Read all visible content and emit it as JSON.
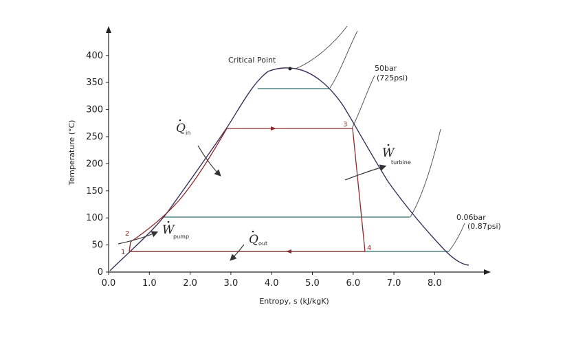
{
  "chart_data": {
    "type": "line",
    "xlabel": "Entropy, s (kJ/kgK)",
    "ylabel": "Temperature (°C)",
    "xlim": [
      0,
      9.0
    ],
    "ylim": [
      0,
      440
    ],
    "xticks": [
      "0.0",
      "1.0",
      "2.0",
      "3.0",
      "4.0",
      "5.0",
      "6.0",
      "7.0",
      "8.0"
    ],
    "yticks": [
      "0",
      "50",
      "100",
      "150",
      "200",
      "250",
      "300",
      "350",
      "400"
    ],
    "grid": false,
    "colors": {
      "axis": "#222222",
      "dome": "#3a2f5c",
      "cycle": "#8b2a2a",
      "isobar": "#2e6b6b",
      "isobar_sh": "#555555",
      "arrow": "#333333"
    },
    "series": [
      {
        "role": "saturation-dome",
        "x": [
          0.0,
          0.5,
          1.2,
          2.0,
          2.5,
          2.9,
          3.3,
          3.7,
          4.0,
          4.4,
          4.8,
          5.2,
          5.6,
          6.0,
          6.5,
          7.0,
          7.5,
          8.0,
          8.5
        ],
        "y": [
          0,
          40,
          95,
          180,
          230,
          265,
          325,
          360,
          372,
          374,
          365,
          340,
          305,
          262,
          200,
          140,
          90,
          52,
          18
        ]
      },
      {
        "role": "cycle-boiler",
        "x": [
          2.9,
          6.0
        ],
        "y": [
          265,
          265
        ]
      },
      {
        "role": "cycle-turbine",
        "x": [
          6.0,
          6.27
        ],
        "y": [
          265,
          37
        ]
      },
      {
        "role": "cycle-condenser",
        "x": [
          6.27,
          0.5
        ],
        "y": [
          37,
          37
        ]
      },
      {
        "role": "cycle-pump",
        "x": [
          0.5,
          0.55
        ],
        "y": [
          37,
          55
        ]
      },
      {
        "role": "isobar-0.06bar-wet",
        "x": [
          1.3,
          8.3
        ],
        "y": [
          37,
          37
        ]
      },
      {
        "role": "isobar-50bar-wet",
        "x": [
          3.7,
          5.3
        ],
        "y": [
          338,
          338
        ]
      },
      {
        "role": "isobar-100C-wet",
        "x": [
          1.3,
          7.35
        ],
        "y": [
          100,
          100
        ]
      }
    ],
    "annotations": {
      "critical_point": "Critical Point",
      "isobar_high": "50bar",
      "isobar_high_psi": "(725psi)",
      "isobar_low": "0.06bar",
      "isobar_low_psi": "(0.87psi)",
      "q_in": "Q",
      "q_in_sub": "in",
      "q_out": "Q",
      "q_out_sub": "out",
      "w_turbine": "W",
      "w_turbine_sub": "turbine",
      "w_pump": "W",
      "w_pump_sub": "pump",
      "points": [
        "1",
        "2",
        "3",
        "4"
      ]
    }
  }
}
